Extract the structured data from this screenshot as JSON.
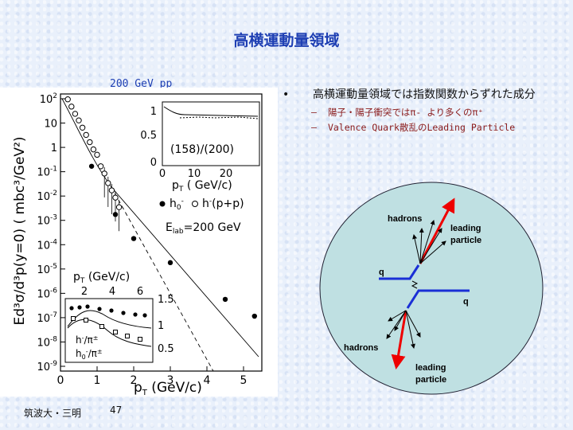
{
  "title": "高横運動量領域",
  "plot": {
    "caption": "200 GeV pp",
    "ylabel": "Ed³σ/d³p(y=0) ( mbc³/GeV²)",
    "xlabel": "p",
    "xlabel_sub": "T",
    "xlabel_unit": " (GeV/c)",
    "main_xticks": [
      "0",
      "1",
      "2",
      "3",
      "4",
      "5"
    ],
    "main_yticks": [
      {
        "m": "10",
        "e": "2"
      },
      {
        "m": "10",
        "e": ""
      },
      {
        "m": "1",
        "e": ""
      },
      {
        "m": "10",
        "e": "-1"
      },
      {
        "m": "10",
        "e": "-2"
      },
      {
        "m": "10",
        "e": "-3"
      },
      {
        "m": "10",
        "e": "-4"
      },
      {
        "m": "10",
        "e": "-5"
      },
      {
        "m": "10",
        "e": "-6"
      },
      {
        "m": "10",
        "e": "-7"
      },
      {
        "m": "10",
        "e": "-8"
      },
      {
        "m": "10",
        "e": "-9"
      }
    ],
    "legend_h0": "h",
    "legend_h0_sub": "0",
    "legend_h0_sup": "-",
    "legend_pp": "h",
    "legend_pp_sup": "-",
    "legend_pp_paren": "(p+p)",
    "elab": "E",
    "elab_sub": "lab",
    "elab_rest": "=200 GeV",
    "inset_top": {
      "yticks": [
        "1",
        "0.5",
        "0"
      ],
      "xticks": [
        "0",
        "10",
        "20"
      ],
      "label": "(158)/(200)",
      "xlabel": "p",
      "xlabel_sub": "T",
      "xlabel_unit": " ( GeV/c)"
    },
    "inset_bottom": {
      "top_label": "p",
      "top_label_sub": "T",
      "top_label_unit": " (GeV/c)",
      "top_ticks": [
        "2",
        "4",
        "6"
      ],
      "right_ticks": [
        "1.5",
        "1",
        "0.5"
      ],
      "legend1": "h",
      "legend1_sup": "-",
      "legend1_den": "/π",
      "legend1_densup": "±",
      "legend2": "h",
      "legend2_sub": "0",
      "legend2_sup": "-",
      "legend2_den": "/π",
      "legend2_densup": "±"
    },
    "chart_data": {
      "type": "scatter",
      "title": "200 GeV pp",
      "xlabel": "pT (GeV/c)",
      "ylabel": "Ed³σ/d³p(y=0) (mbc³/GeV²)",
      "xlim": [
        0,
        5.5
      ],
      "ylim_log10": [
        -9.5,
        2
      ],
      "series": [
        {
          "name": "h0-",
          "x": [
            0.85,
            1.5,
            2.0,
            3.0,
            4.5,
            5.3
          ],
          "y": [
            0.1,
            0.001,
            0.0001,
            1e-05,
            3e-07,
            6e-08
          ]
        },
        {
          "name": "h-(p+p)",
          "x": [
            0.2,
            0.3,
            0.4,
            0.5,
            0.6,
            0.7,
            0.8,
            0.9,
            1.0,
            1.1,
            1.2,
            1.3,
            1.4,
            1.5,
            1.6
          ],
          "y": [
            60,
            30,
            15,
            8,
            4,
            2,
            1,
            0.5,
            0.3,
            0.1,
            0.05,
            0.02,
            0.01,
            0.005,
            0.002
          ]
        }
      ]
    }
  },
  "bullets": {
    "main_dot": "•",
    "main_text": "高横運動量領域では指数関数からずれた成分",
    "sub_dash": "–",
    "sub": [
      "陽子・陽子衝突ではπ‐ より多くのπ⁺",
      "Valence Quark散乱のLeading Particle"
    ]
  },
  "diagram": {
    "hadrons_top": "hadrons",
    "leading_top": "leading particle",
    "leading_top_1": "leading",
    "leading_top_2": "particle",
    "q_left": "q",
    "q_right": "q",
    "hadrons_bottom": "hadrons",
    "leading_bottom_1": "leading",
    "leading_bottom_2": "particle"
  },
  "footer": {
    "institution": "筑波大・三明",
    "page": "47"
  }
}
